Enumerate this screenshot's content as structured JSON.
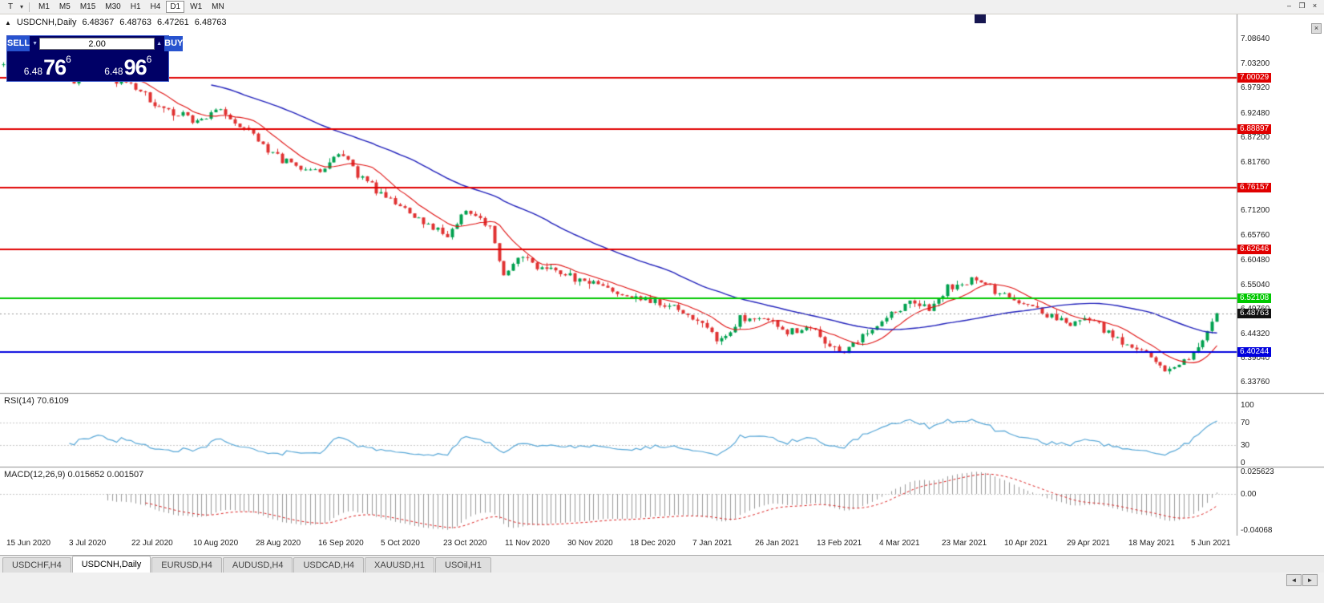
{
  "icons": {
    "template_caret": "▾",
    "chart_marker": "▲",
    "volume_down": "▼",
    "volume_up": "▲",
    "close": "×",
    "win_min": "–",
    "win_restore": "❐",
    "win_close": "×",
    "tab_prev": "◄",
    "tab_next": "►"
  },
  "toolbar": {
    "template_button_label": "T",
    "timeframes": [
      "M1",
      "M5",
      "M15",
      "M30",
      "H1",
      "H4",
      "D1",
      "W1",
      "MN"
    ],
    "active_timeframe": "D1"
  },
  "header": {
    "title": "USDCNH,Daily",
    "open": "6.48367",
    "high": "6.48763",
    "low": "6.47261",
    "close": "6.48763"
  },
  "one_click": {
    "sell_label": "SELL",
    "buy_label": "BUY",
    "volume": "2.00",
    "sell_price_prefix": "6.48",
    "sell_price_big": "76",
    "sell_price_sup": "6",
    "buy_price_prefix": "6.48",
    "buy_price_big": "96",
    "buy_price_sup": "6"
  },
  "chart_data": {
    "type": "candlestick",
    "symbol": "USDCNH",
    "timeframe": "Daily",
    "last_close": 6.48763,
    "current_price_label": "6.48763",
    "ylim_main": [
      6.314,
      7.139
    ],
    "price_ticks": [
      "7.08640",
      "7.03200",
      "6.97920",
      "6.92480",
      "6.87200",
      "6.81760",
      "6.76480",
      "6.71200",
      "6.65760",
      "6.60480",
      "6.55040",
      "6.49760",
      "6.44320",
      "6.39040",
      "6.33760"
    ],
    "levels": [
      {
        "value": 7.00029,
        "label": "7.00029",
        "color": "#e00000"
      },
      {
        "value": 6.88897,
        "label": "6.88897",
        "color": "#e00000"
      },
      {
        "value": 6.76157,
        "label": "6.76157",
        "color": "#e00000"
      },
      {
        "value": 6.62646,
        "label": "6.62646",
        "color": "#e00000"
      },
      {
        "value": 6.52108,
        "label": "6.52108",
        "color": "#00c800"
      },
      {
        "value": 6.40244,
        "label": "6.40244",
        "color": "#0000dd"
      }
    ],
    "dates": [
      "15 Jun 2020",
      "3 Jul 2020",
      "22 Jul 2020",
      "10 Aug 2020",
      "28 Aug 2020",
      "16 Sep 2020",
      "5 Oct 2020",
      "23 Oct 2020",
      "11 Nov 2020",
      "30 Nov 2020",
      "18 Dec 2020",
      "7 Jan 2021",
      "26 Jan 2021",
      "13 Feb 2021",
      "4 Mar 2021",
      "23 Mar 2021",
      "10 Apr 2021",
      "29 Apr 2021",
      "18 May 2021",
      "5 Jun 2021"
    ],
    "candle_count": 258,
    "trend_anchors": [
      [
        0,
        7.03
      ],
      [
        5,
        7.068
      ],
      [
        10,
        7.012
      ],
      [
        14,
        6.996
      ],
      [
        20,
        7.016
      ],
      [
        27,
        6.986
      ],
      [
        33,
        6.936
      ],
      [
        40,
        6.906
      ],
      [
        46,
        6.93
      ],
      [
        54,
        6.866
      ],
      [
        60,
        6.816
      ],
      [
        67,
        6.792
      ],
      [
        71,
        6.84
      ],
      [
        77,
        6.772
      ],
      [
        80,
        6.746
      ],
      [
        87,
        6.7
      ],
      [
        94,
        6.657
      ],
      [
        98,
        6.716
      ],
      [
        103,
        6.676
      ],
      [
        106,
        6.566
      ],
      [
        110,
        6.614
      ],
      [
        114,
        6.586
      ],
      [
        120,
        6.572
      ],
      [
        127,
        6.546
      ],
      [
        134,
        6.522
      ],
      [
        141,
        6.506
      ],
      [
        148,
        6.462
      ],
      [
        152,
        6.428
      ],
      [
        156,
        6.472
      ],
      [
        161,
        6.478
      ],
      [
        166,
        6.448
      ],
      [
        170,
        6.46
      ],
      [
        174,
        6.42
      ],
      [
        178,
        6.402
      ],
      [
        183,
        6.448
      ],
      [
        187,
        6.478
      ],
      [
        192,
        6.512
      ],
      [
        196,
        6.498
      ],
      [
        200,
        6.54
      ],
      [
        205,
        6.56
      ],
      [
        209,
        6.546
      ],
      [
        213,
        6.52
      ],
      [
        218,
        6.498
      ],
      [
        222,
        6.48
      ],
      [
        226,
        6.462
      ],
      [
        230,
        6.476
      ],
      [
        234,
        6.438
      ],
      [
        239,
        6.416
      ],
      [
        243,
        6.388
      ],
      [
        246,
        6.358
      ],
      [
        249,
        6.372
      ],
      [
        251,
        6.392
      ],
      [
        253,
        6.412
      ],
      [
        255,
        6.448
      ],
      [
        257,
        6.48763
      ]
    ],
    "up_color": "#00a14f",
    "down_color": "#e03232",
    "ma_fast": {
      "period": 10,
      "color": "#e01010"
    },
    "ma_slow": {
      "period": 45,
      "color": "#2020bb"
    },
    "rsi": {
      "label": "RSI(14) 70.6109",
      "period": 14,
      "last": 70.6109,
      "ticks": [
        "100",
        "70",
        "30",
        "0"
      ],
      "levels": [
        70,
        30
      ],
      "color": "#57a7d7"
    },
    "macd": {
      "label": "MACD(12,26,9) 0.015652 0.001507",
      "params": [
        12,
        26,
        9
      ],
      "last_main": 0.015652,
      "last_signal": 0.001507,
      "ticks": [
        "0.025623",
        "0.00",
        "-0.04068"
      ],
      "ylim": [
        -0.047,
        0.029
      ],
      "histogram_color": "#9a9a9a",
      "signal_color": "#dd2222"
    }
  },
  "tabs": {
    "items": [
      "USDCHF,H4",
      "USDCNH,Daily",
      "EURUSD,H4",
      "AUDUSD,H4",
      "USDCAD,H4",
      "XAUUSD,H1",
      "USOil,H1"
    ],
    "active": "USDCNH,Daily"
  }
}
